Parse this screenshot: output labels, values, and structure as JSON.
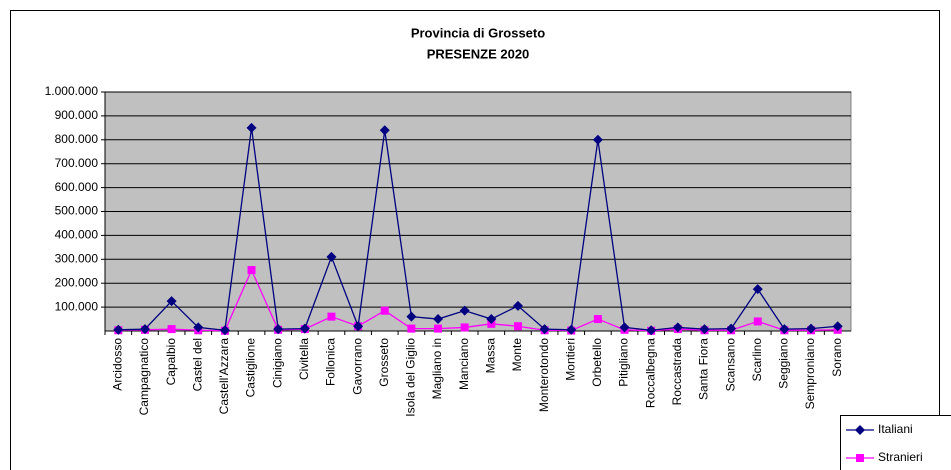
{
  "chart_data": {
    "type": "line",
    "title": "Provincia di Grosseto",
    "subtitle": "PRESENZE  2020",
    "categories": [
      "Arcidosso",
      "Campagnatico",
      "Capalbio",
      "Castel del",
      "Castell'Azzara",
      "Castiglione",
      "Cinigiano",
      "Civitella",
      "Follonica",
      "Gavorrano",
      "Grosseto",
      "Isola del Giglio",
      "Magliano in",
      "Manciano",
      "Massa",
      "Monte",
      "Monterotondo",
      "Montieri",
      "Orbetello",
      "Pitigliano",
      "Roccalbegna",
      "Roccastrada",
      "Santa Fiora",
      "Scansano",
      "Scarlino",
      "Seggiano",
      "Semproniano",
      "Sorano"
    ],
    "series": [
      {
        "name": "Italiani",
        "color": "#000080",
        "marker": "diamond",
        "values": [
          5000,
          8000,
          125000,
          15000,
          3000,
          850000,
          8000,
          10000,
          310000,
          20000,
          840000,
          60000,
          50000,
          85000,
          50000,
          105000,
          8000,
          5000,
          800000,
          15000,
          3000,
          15000,
          8000,
          10000,
          175000,
          8000,
          10000,
          20000
        ]
      },
      {
        "name": "Stranieri",
        "color": "#ff00ff",
        "marker": "square",
        "values": [
          3000,
          5000,
          8000,
          3000,
          1000,
          255000,
          5000,
          8000,
          60000,
          20000,
          85000,
          10000,
          10000,
          15000,
          30000,
          20000,
          3000,
          2000,
          50000,
          5000,
          1000,
          8000,
          3000,
          3000,
          40000,
          3000,
          3000,
          5000
        ]
      }
    ],
    "ylim": [
      0,
      1000000
    ],
    "yticks": [
      {
        "value": 100000,
        "label": "100.000"
      },
      {
        "value": 200000,
        "label": "200.000"
      },
      {
        "value": 300000,
        "label": "300.000"
      },
      {
        "value": 400000,
        "label": "400.000"
      },
      {
        "value": 500000,
        "label": "500.000"
      },
      {
        "value": 600000,
        "label": "600.000"
      },
      {
        "value": 700000,
        "label": "700.000"
      },
      {
        "value": 800000,
        "label": "800.000"
      },
      {
        "value": 900000,
        "label": "900.000"
      },
      {
        "value": 1000000,
        "label": "1.000.000"
      }
    ],
    "grid": true,
    "plot_background": "#c0c0c0",
    "legend": "lower right"
  }
}
